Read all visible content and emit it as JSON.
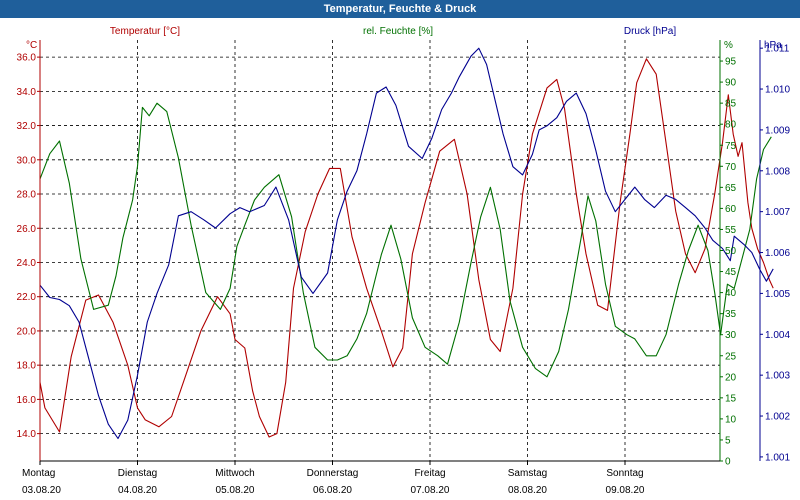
{
  "window": {
    "title": "Temperatur, Feuchte & Druck"
  },
  "colors": {
    "temperature": "#b00000",
    "humidity": "#007000",
    "pressure": "#000090",
    "grid": "#000000",
    "titlebar": "#1f5f9b"
  },
  "chart_data": {
    "type": "line",
    "title": "Temperatur, Feuchte & Druck",
    "grid": "dashed",
    "days": [
      {
        "name": "Montag",
        "date": "03.08.20"
      },
      {
        "name": "Dienstag",
        "date": "04.08.20"
      },
      {
        "name": "Mittwoch",
        "date": "05.08.20"
      },
      {
        "name": "Donnerstag",
        "date": "06.08.20"
      },
      {
        "name": "Freitag",
        "date": "07.08.20"
      },
      {
        "name": "Samstag",
        "date": "08.08.20"
      },
      {
        "name": "Sonntag",
        "date": "09.08.20"
      }
    ],
    "x_range_days": [
      0,
      7
    ],
    "axes": {
      "temperature": {
        "unit": "°C",
        "label": "Temperatur [°C]",
        "range": [
          12.4,
          37.0
        ],
        "ticks": [
          "14.0",
          "16.0",
          "18.0",
          "20.0",
          "22.0",
          "24.0",
          "26.0",
          "28.0",
          "30.0",
          "32.0",
          "34.0",
          "36.0"
        ]
      },
      "humidity": {
        "unit": "%",
        "label": "rel. Feuchte [%]",
        "range": [
          0,
          100
        ],
        "ticks": [
          "0",
          "5",
          "10",
          "15",
          "20",
          "25",
          "30",
          "35",
          "40",
          "45",
          "50",
          "55",
          "60",
          "65",
          "70",
          "75",
          "80",
          "85",
          "90",
          "95"
        ]
      },
      "pressure": {
        "unit": "hPa",
        "label": "Druck [hPa]",
        "range": [
          1000.9,
          1011.2
        ],
        "ticks": [
          "1.001",
          "1.002",
          "1.003",
          "1.004",
          "1.005",
          "1.006",
          "1.007",
          "1.008",
          "1.009",
          "1.010",
          "1.011"
        ]
      }
    },
    "series": [
      {
        "name": "Temperatur",
        "axis": "temperature",
        "points": [
          [
            0,
            17.0
          ],
          [
            0.05,
            15.5
          ],
          [
            0.2,
            14.1
          ],
          [
            0.32,
            18.5
          ],
          [
            0.47,
            21.8
          ],
          [
            0.6,
            22.1
          ],
          [
            0.75,
            20.5
          ],
          [
            0.9,
            18.0
          ],
          [
            1.0,
            15.5
          ],
          [
            1.08,
            14.8
          ],
          [
            1.22,
            14.4
          ],
          [
            1.35,
            15.0
          ],
          [
            1.5,
            17.5
          ],
          [
            1.65,
            20.0
          ],
          [
            1.82,
            22.0
          ],
          [
            1.95,
            21.0
          ],
          [
            2.0,
            19.5
          ],
          [
            2.1,
            19.0
          ],
          [
            2.18,
            16.5
          ],
          [
            2.25,
            15.0
          ],
          [
            2.35,
            13.8
          ],
          [
            2.43,
            14.0
          ],
          [
            2.52,
            17.0
          ],
          [
            2.6,
            22.5
          ],
          [
            2.72,
            25.8
          ],
          [
            2.85,
            28.0
          ],
          [
            2.97,
            29.5
          ],
          [
            3.08,
            29.5
          ],
          [
            3.2,
            25.5
          ],
          [
            3.35,
            22.5
          ],
          [
            3.5,
            20.0
          ],
          [
            3.62,
            17.9
          ],
          [
            3.72,
            19.0
          ],
          [
            3.82,
            24.5
          ],
          [
            3.95,
            27.5
          ],
          [
            4.1,
            30.5
          ],
          [
            4.25,
            31.2
          ],
          [
            4.38,
            28.0
          ],
          [
            4.5,
            23.0
          ],
          [
            4.62,
            19.5
          ],
          [
            4.72,
            18.8
          ],
          [
            4.85,
            22.5
          ],
          [
            4.95,
            28.0
          ],
          [
            5.05,
            31.5
          ],
          [
            5.2,
            34.2
          ],
          [
            5.3,
            34.7
          ],
          [
            5.38,
            33.0
          ],
          [
            5.5,
            28.0
          ],
          [
            5.6,
            24.5
          ],
          [
            5.72,
            21.5
          ],
          [
            5.82,
            21.2
          ],
          [
            5.95,
            27.5
          ],
          [
            6.05,
            31.5
          ],
          [
            6.12,
            34.5
          ],
          [
            6.22,
            35.9
          ],
          [
            6.32,
            35.0
          ],
          [
            6.42,
            31.0
          ],
          [
            6.52,
            27.0
          ],
          [
            6.62,
            24.5
          ],
          [
            6.72,
            23.4
          ],
          [
            6.82,
            24.8
          ],
          [
            6.92,
            28.0
          ],
          [
            7.0,
            31.0
          ],
          [
            7.06,
            33.8
          ],
          [
            7.11,
            31.5
          ],
          [
            7.16,
            30.2
          ],
          [
            7.2,
            31.0
          ],
          [
            7.26,
            27.5
          ],
          [
            7.3,
            26.0
          ],
          [
            7.36,
            24.8
          ],
          [
            7.42,
            24.0
          ],
          [
            7.48,
            23.0
          ],
          [
            7.52,
            22.5
          ]
        ]
      },
      {
        "name": "rel. Feuchte",
        "axis": "humidity",
        "points": [
          [
            0,
            67
          ],
          [
            0.1,
            73
          ],
          [
            0.2,
            76
          ],
          [
            0.3,
            66
          ],
          [
            0.42,
            48
          ],
          [
            0.55,
            36
          ],
          [
            0.7,
            37
          ],
          [
            0.78,
            44
          ],
          [
            0.85,
            53
          ],
          [
            0.95,
            62
          ],
          [
            1.0,
            70
          ],
          [
            1.05,
            84
          ],
          [
            1.12,
            82
          ],
          [
            1.2,
            85
          ],
          [
            1.3,
            83
          ],
          [
            1.42,
            72
          ],
          [
            1.55,
            56
          ],
          [
            1.7,
            40
          ],
          [
            1.85,
            36
          ],
          [
            1.95,
            41
          ],
          [
            2.02,
            51
          ],
          [
            2.1,
            56
          ],
          [
            2.2,
            62
          ],
          [
            2.3,
            65
          ],
          [
            2.45,
            68
          ],
          [
            2.58,
            58
          ],
          [
            2.7,
            40
          ],
          [
            2.82,
            27
          ],
          [
            2.95,
            24
          ],
          [
            3.05,
            24
          ],
          [
            3.15,
            25
          ],
          [
            3.25,
            29
          ],
          [
            3.35,
            35
          ],
          [
            3.5,
            49
          ],
          [
            3.6,
            56
          ],
          [
            3.7,
            48
          ],
          [
            3.82,
            34
          ],
          [
            3.95,
            27
          ],
          [
            4.08,
            25
          ],
          [
            4.18,
            23
          ],
          [
            4.3,
            33
          ],
          [
            4.42,
            47
          ],
          [
            4.52,
            58
          ],
          [
            4.62,
            65
          ],
          [
            4.72,
            55
          ],
          [
            4.82,
            38
          ],
          [
            4.95,
            27
          ],
          [
            5.08,
            22
          ],
          [
            5.2,
            20
          ],
          [
            5.32,
            26
          ],
          [
            5.42,
            36
          ],
          [
            5.55,
            53
          ],
          [
            5.62,
            63
          ],
          [
            5.7,
            57
          ],
          [
            5.8,
            42
          ],
          [
            5.9,
            32
          ],
          [
            6.02,
            30
          ],
          [
            6.1,
            29
          ],
          [
            6.22,
            25
          ],
          [
            6.32,
            25
          ],
          [
            6.42,
            30
          ],
          [
            6.55,
            42
          ],
          [
            6.65,
            50
          ],
          [
            6.75,
            56
          ],
          [
            6.85,
            50
          ],
          [
            6.92,
            40
          ],
          [
            6.98,
            30
          ],
          [
            7.05,
            42
          ],
          [
            7.12,
            41
          ],
          [
            7.2,
            48
          ],
          [
            7.28,
            55
          ],
          [
            7.35,
            67
          ],
          [
            7.42,
            74
          ],
          [
            7.5,
            77
          ]
        ]
      },
      {
        "name": "Druck",
        "axis": "pressure",
        "points": [
          [
            0,
            1005.2
          ],
          [
            0.1,
            1004.9
          ],
          [
            0.2,
            1004.85
          ],
          [
            0.3,
            1004.7
          ],
          [
            0.4,
            1004.3
          ],
          [
            0.5,
            1003.4
          ],
          [
            0.6,
            1002.5
          ],
          [
            0.7,
            1001.8
          ],
          [
            0.8,
            1001.45
          ],
          [
            0.9,
            1001.9
          ],
          [
            1.0,
            1003.0
          ],
          [
            1.1,
            1004.3
          ],
          [
            1.2,
            1005.0
          ],
          [
            1.32,
            1005.7
          ],
          [
            1.42,
            1006.9
          ],
          [
            1.55,
            1007.0
          ],
          [
            1.68,
            1006.8
          ],
          [
            1.8,
            1006.6
          ],
          [
            1.95,
            1006.95
          ],
          [
            2.05,
            1007.1
          ],
          [
            2.15,
            1007.0
          ],
          [
            2.3,
            1007.15
          ],
          [
            2.42,
            1007.6
          ],
          [
            2.55,
            1006.8
          ],
          [
            2.68,
            1005.4
          ],
          [
            2.8,
            1005.0
          ],
          [
            2.95,
            1005.5
          ],
          [
            3.05,
            1006.8
          ],
          [
            3.15,
            1007.5
          ],
          [
            3.25,
            1008.0
          ],
          [
            3.35,
            1008.9
          ],
          [
            3.45,
            1009.9
          ],
          [
            3.55,
            1010.05
          ],
          [
            3.65,
            1009.6
          ],
          [
            3.78,
            1008.6
          ],
          [
            3.92,
            1008.3
          ],
          [
            4.02,
            1008.8
          ],
          [
            4.12,
            1009.5
          ],
          [
            4.22,
            1009.9
          ],
          [
            4.3,
            1010.3
          ],
          [
            4.42,
            1010.8
          ],
          [
            4.5,
            1011.0
          ],
          [
            4.58,
            1010.6
          ],
          [
            4.65,
            1009.9
          ],
          [
            4.75,
            1008.9
          ],
          [
            4.85,
            1008.1
          ],
          [
            4.95,
            1007.9
          ],
          [
            5.05,
            1008.4
          ],
          [
            5.12,
            1009.0
          ],
          [
            5.2,
            1009.1
          ],
          [
            5.3,
            1009.3
          ],
          [
            5.4,
            1009.7
          ],
          [
            5.5,
            1009.9
          ],
          [
            5.6,
            1009.4
          ],
          [
            5.7,
            1008.5
          ],
          [
            5.8,
            1007.5
          ],
          [
            5.9,
            1007.0
          ],
          [
            6.0,
            1007.3
          ],
          [
            6.1,
            1007.6
          ],
          [
            6.2,
            1007.3
          ],
          [
            6.3,
            1007.1
          ],
          [
            6.42,
            1007.4
          ],
          [
            6.52,
            1007.3
          ],
          [
            6.62,
            1007.1
          ],
          [
            6.72,
            1006.9
          ],
          [
            6.82,
            1006.6
          ],
          [
            6.9,
            1006.3
          ],
          [
            7.0,
            1006.1
          ],
          [
            7.08,
            1005.8
          ],
          [
            7.12,
            1006.4
          ],
          [
            7.22,
            1006.2
          ],
          [
            7.3,
            1006.0
          ],
          [
            7.38,
            1005.6
          ],
          [
            7.45,
            1005.3
          ],
          [
            7.52,
            1005.6
          ]
        ]
      }
    ]
  }
}
